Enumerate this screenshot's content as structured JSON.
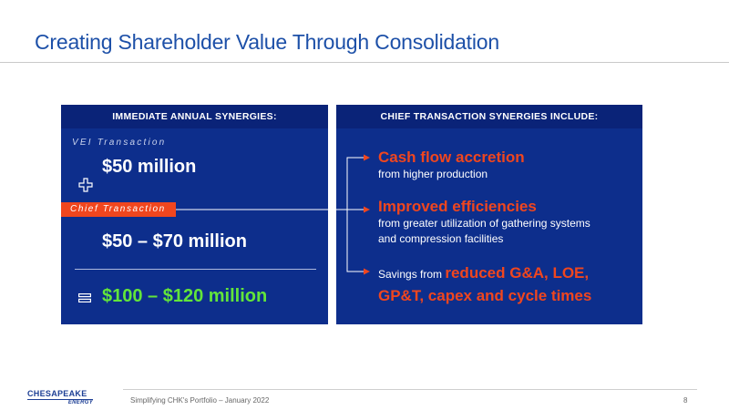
{
  "slide": {
    "title": "Creating Shareholder Value Through Consolidation",
    "footer_text": "Simplifying CHK's Portfolio – January 2022",
    "page_number": "8"
  },
  "left_panel": {
    "header": "IMMEDIATE ANNUAL SYNERGIES:",
    "vei_label": "VEI Transaction",
    "vei_value": "$50 million",
    "chief_label": "Chief Transaction",
    "chief_value": "$50 – $70 million",
    "total_value": "$100 – $120 million"
  },
  "right_panel": {
    "header": "CHIEF TRANSACTION SYNERGIES INCLUDE:",
    "items": [
      {
        "headline": "Cash flow accretion",
        "detail": "from higher production"
      },
      {
        "headline": "Improved efficiencies",
        "detail_lines": [
          "from greater utilization of gathering systems",
          "and compression facilities"
        ]
      },
      {
        "prefix": "Savings from ",
        "headline_lines": [
          "reduced G&A, LOE,",
          "GP&T, capex and cycle times"
        ]
      }
    ]
  },
  "logo": {
    "name": "CHESAPEAKE",
    "sub": "ENERGY"
  },
  "colors": {
    "title_blue": "#1d50a8",
    "panel_blue": "#0d2e8c",
    "header_blue": "#0a2378",
    "accent_orange": "#f0461e",
    "total_green": "#62e53a"
  },
  "icons": [
    "plus-icon",
    "equals-icon",
    "connector-arrow-icon"
  ]
}
